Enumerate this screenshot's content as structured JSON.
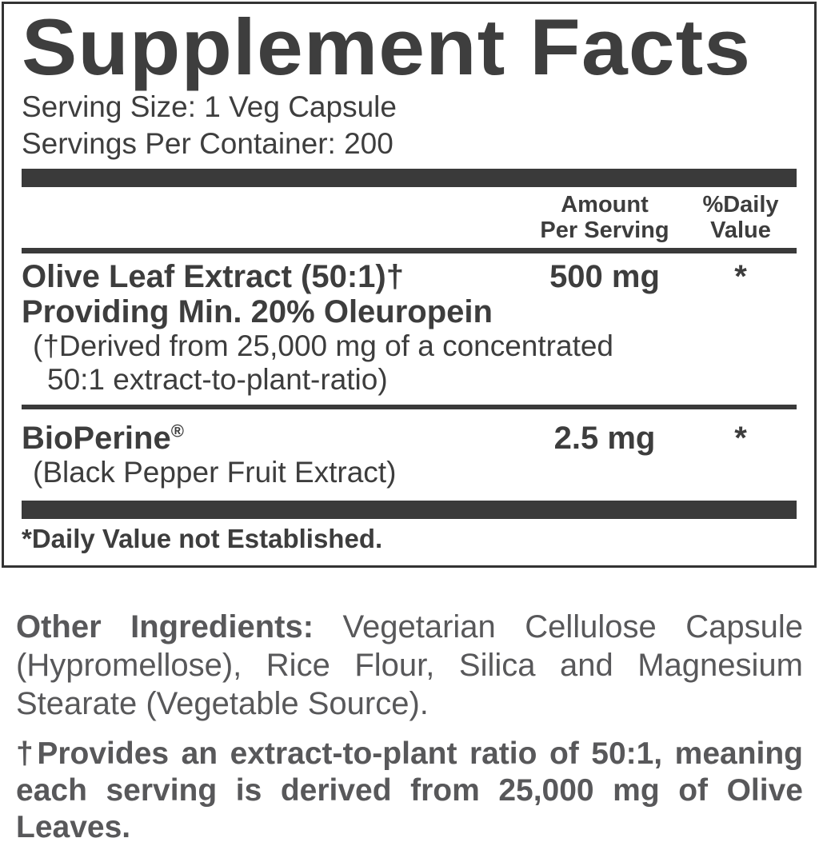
{
  "colors": {
    "panel_ink": "#3d3d3d",
    "bar": "#3a3a3a",
    "border": "#333333",
    "muted_text": "#58585a",
    "background": "#ffffff"
  },
  "panel": {
    "title": "Supplement Facts",
    "serving_size": "Serving Size: 1 Veg Capsule",
    "servings_per_container": "Servings Per Container: 200",
    "columns": {
      "amount": "Amount\nPer Serving",
      "daily_value": "%Daily\nValue"
    },
    "rows": [
      {
        "name": "Olive Leaf Extract (50:1)†",
        "subtitle": "Providing Min. 20% Oleuropein",
        "note_line1": "(†Derived from 25,000 mg of a concentrated",
        "note_line2": "50:1 extract-to-plant-ratio)",
        "amount": "500 mg",
        "daily_value": "*"
      },
      {
        "name": "BioPerine",
        "trademark": "®",
        "subtitle": "(Black Pepper Fruit Extract)",
        "amount": "2.5 mg",
        "daily_value": "*"
      }
    ],
    "footnote": "*Daily Value not Established."
  },
  "other_ingredients": {
    "label": "Other Ingredients:",
    "text": "Vegetarian Cellulose Capsule (Hypromellose), Rice Flour, Silica and Magnesium Stearate (Vegetable Source)."
  },
  "ratio_note": "†Provides an extract-to-plant ratio of 50:1, meaning each serving is derived from 25,000 mg of Olive Leaves."
}
